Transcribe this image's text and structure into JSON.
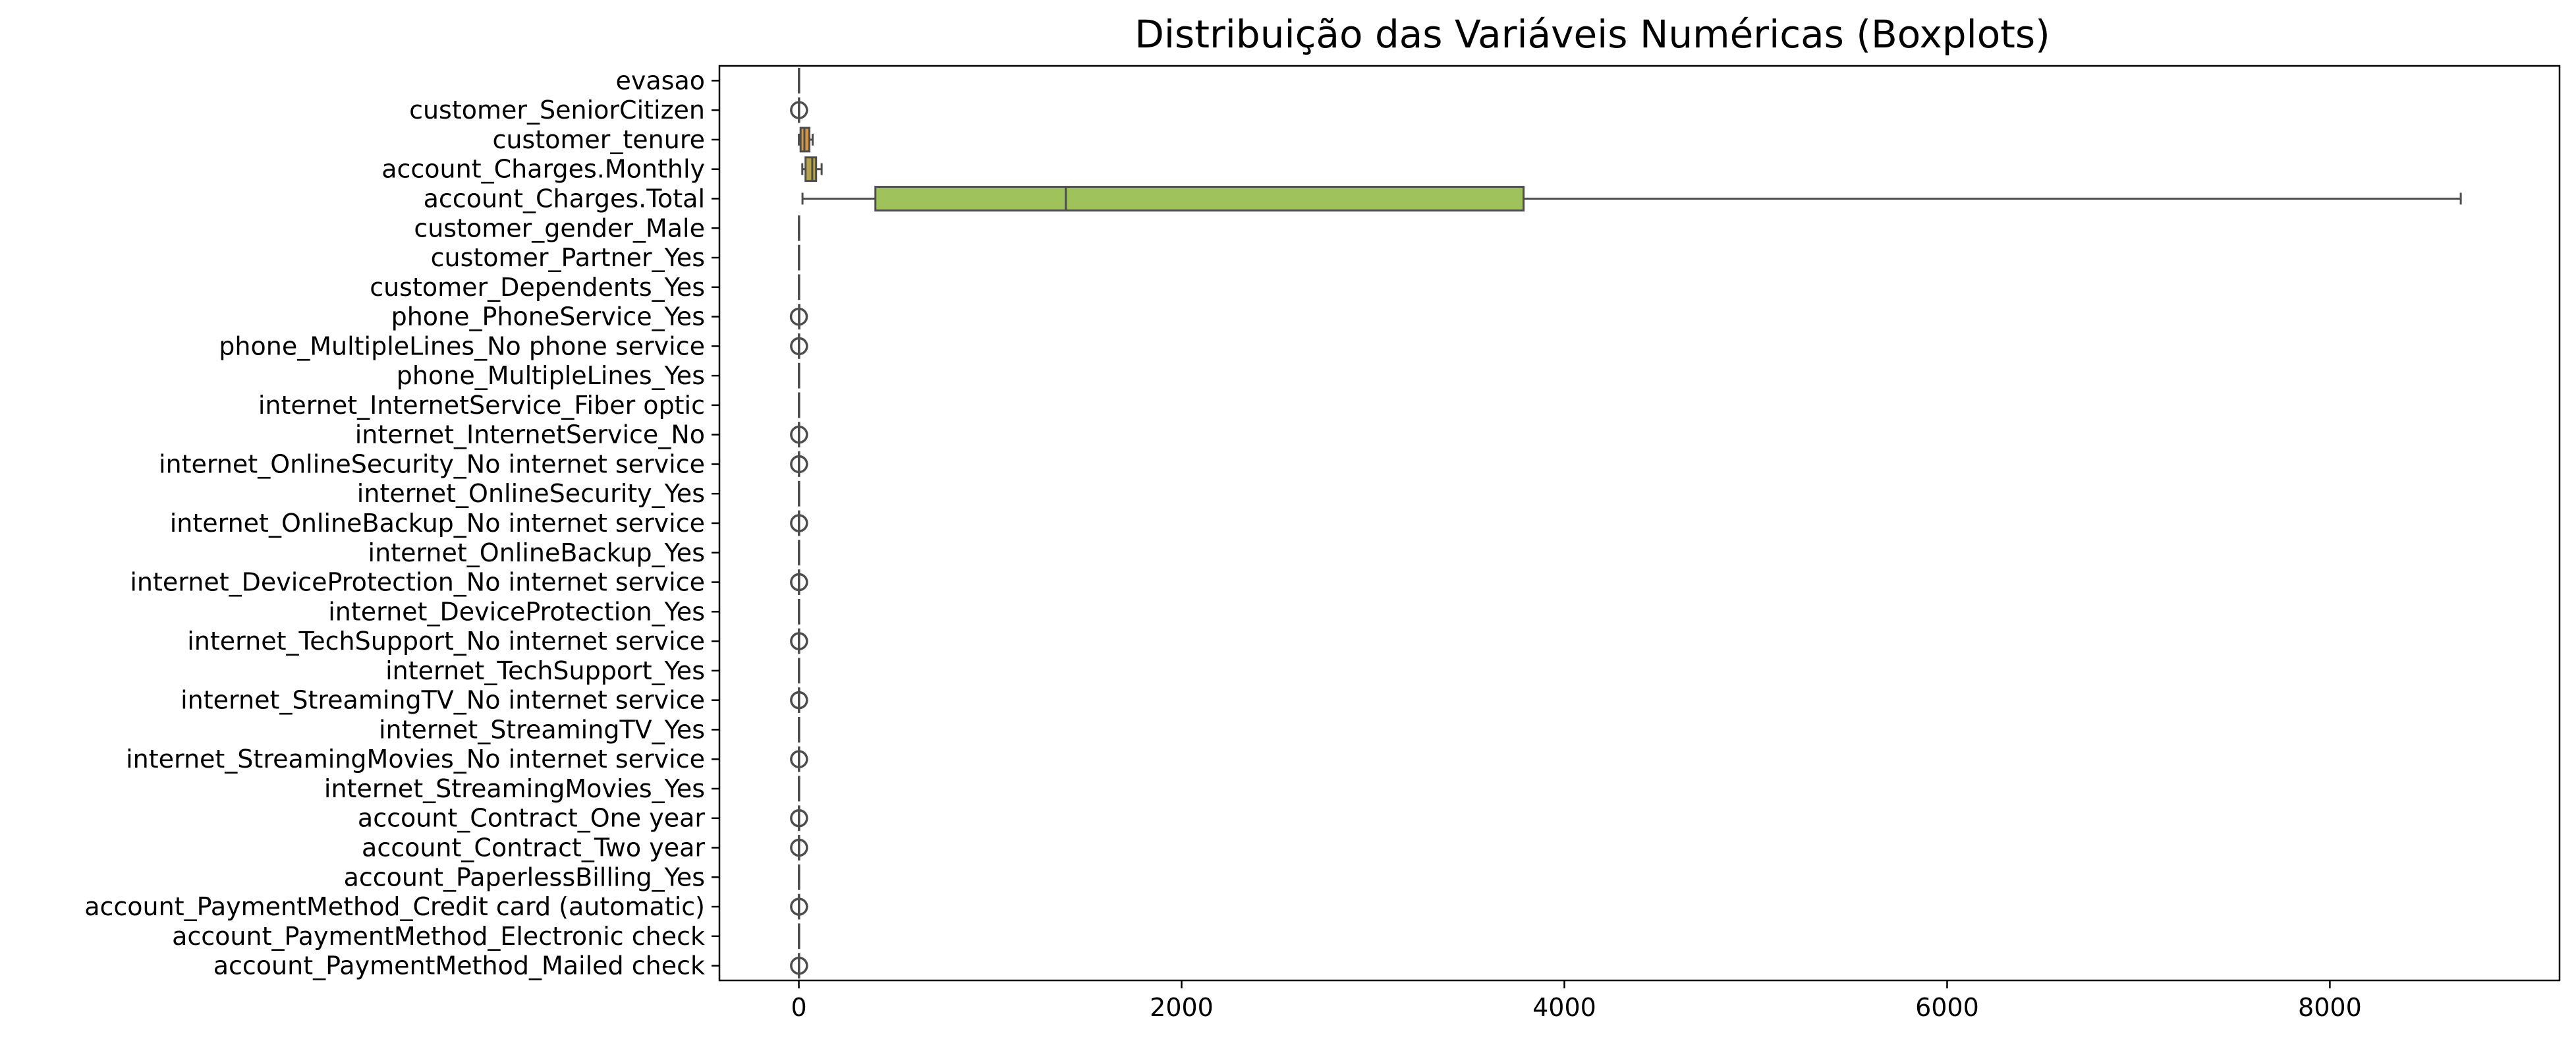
{
  "chart_data": {
    "type": "boxplot",
    "title": "Distribuição das Variáveis Numéricas (Boxplots)",
    "xlabel": "",
    "ylabel": "",
    "xlim": [
      -415,
      9200
    ],
    "xticks": [
      0,
      2000,
      4000,
      6000,
      8000
    ],
    "xtick_labels": [
      "0",
      "2000",
      "4000",
      "6000",
      "8000"
    ],
    "grid": false,
    "legend": "none",
    "categories": [
      "evasao",
      "customer_SeniorCitizen",
      "customer_tenure",
      "account_Charges.Monthly",
      "account_Charges.Total",
      "customer_gender_Male",
      "customer_Partner_Yes",
      "customer_Dependents_Yes",
      "phone_PhoneService_Yes",
      "phone_MultipleLines_No phone service",
      "phone_MultipleLines_Yes",
      "internet_InternetService_Fiber optic",
      "internet_InternetService_No",
      "internet_OnlineSecurity_No internet service",
      "internet_OnlineSecurity_Yes",
      "internet_OnlineBackup_No internet service",
      "internet_OnlineBackup_Yes",
      "internet_DeviceProtection_No internet service",
      "internet_DeviceProtection_Yes",
      "internet_TechSupport_No internet service",
      "internet_TechSupport_Yes",
      "internet_StreamingTV_No internet service",
      "internet_StreamingTV_Yes",
      "internet_StreamingMovies_No internet service",
      "internet_StreamingMovies_Yes",
      "account_Contract_One year",
      "account_Contract_Two year",
      "account_PaperlessBilling_Yes",
      "account_PaymentMethod_Credit card (automatic)",
      "account_PaymentMethod_Electronic check",
      "account_PaymentMethod_Mailed check"
    ],
    "boxes": [
      {
        "min": 0,
        "q1": 0,
        "median": 0,
        "q3": 1,
        "max": 1,
        "outliers": []
      },
      {
        "min": 0,
        "q1": 0,
        "median": 0,
        "q3": 0,
        "max": 0,
        "outliers": [
          1
        ]
      },
      {
        "min": 0,
        "q1": 9,
        "median": 29,
        "q3": 55,
        "max": 72,
        "outliers": []
      },
      {
        "min": 18,
        "q1": 35,
        "median": 70,
        "q3": 90,
        "max": 119,
        "outliers": []
      },
      {
        "min": 19,
        "q1": 400,
        "median": 1395,
        "q3": 3787,
        "max": 8684,
        "outliers": []
      },
      {
        "min": 0,
        "q1": 0,
        "median": 1,
        "q3": 1,
        "max": 1,
        "outliers": []
      },
      {
        "min": 0,
        "q1": 0,
        "median": 0,
        "q3": 1,
        "max": 1,
        "outliers": []
      },
      {
        "min": 0,
        "q1": 0,
        "median": 0,
        "q3": 1,
        "max": 1,
        "outliers": []
      },
      {
        "min": 1,
        "q1": 1,
        "median": 1,
        "q3": 1,
        "max": 1,
        "outliers": [
          0
        ]
      },
      {
        "min": 0,
        "q1": 0,
        "median": 0,
        "q3": 0,
        "max": 0,
        "outliers": [
          1
        ]
      },
      {
        "min": 0,
        "q1": 0,
        "median": 0,
        "q3": 1,
        "max": 1,
        "outliers": []
      },
      {
        "min": 0,
        "q1": 0,
        "median": 0,
        "q3": 1,
        "max": 1,
        "outliers": []
      },
      {
        "min": 0,
        "q1": 0,
        "median": 0,
        "q3": 0,
        "max": 0,
        "outliers": [
          1
        ]
      },
      {
        "min": 0,
        "q1": 0,
        "median": 0,
        "q3": 0,
        "max": 0,
        "outliers": [
          1
        ]
      },
      {
        "min": 0,
        "q1": 0,
        "median": 0,
        "q3": 1,
        "max": 1,
        "outliers": []
      },
      {
        "min": 0,
        "q1": 0,
        "median": 0,
        "q3": 0,
        "max": 0,
        "outliers": [
          1
        ]
      },
      {
        "min": 0,
        "q1": 0,
        "median": 0,
        "q3": 1,
        "max": 1,
        "outliers": []
      },
      {
        "min": 0,
        "q1": 0,
        "median": 0,
        "q3": 0,
        "max": 0,
        "outliers": [
          1
        ]
      },
      {
        "min": 0,
        "q1": 0,
        "median": 0,
        "q3": 1,
        "max": 1,
        "outliers": []
      },
      {
        "min": 0,
        "q1": 0,
        "median": 0,
        "q3": 0,
        "max": 0,
        "outliers": [
          1
        ]
      },
      {
        "min": 0,
        "q1": 0,
        "median": 0,
        "q3": 1,
        "max": 1,
        "outliers": []
      },
      {
        "min": 0,
        "q1": 0,
        "median": 0,
        "q3": 0,
        "max": 0,
        "outliers": [
          1
        ]
      },
      {
        "min": 0,
        "q1": 0,
        "median": 0,
        "q3": 1,
        "max": 1,
        "outliers": []
      },
      {
        "min": 0,
        "q1": 0,
        "median": 0,
        "q3": 0,
        "max": 0,
        "outliers": [
          1
        ]
      },
      {
        "min": 0,
        "q1": 0,
        "median": 0,
        "q3": 1,
        "max": 1,
        "outliers": []
      },
      {
        "min": 0,
        "q1": 0,
        "median": 0,
        "q3": 0,
        "max": 0,
        "outliers": [
          1
        ]
      },
      {
        "min": 0,
        "q1": 0,
        "median": 0,
        "q3": 0,
        "max": 0,
        "outliers": [
          1
        ]
      },
      {
        "min": 0,
        "q1": 0,
        "median": 1,
        "q3": 1,
        "max": 1,
        "outliers": []
      },
      {
        "min": 0,
        "q1": 0,
        "median": 0,
        "q3": 0,
        "max": 0,
        "outliers": [
          1
        ]
      },
      {
        "min": 0,
        "q1": 0,
        "median": 0,
        "q3": 1,
        "max": 1,
        "outliers": []
      },
      {
        "min": 0,
        "q1": 0,
        "median": 0,
        "q3": 0,
        "max": 0,
        "outliers": [
          1
        ]
      }
    ],
    "colors": [
      "#e5899a",
      "#e08c6a",
      "#cf9747",
      "#b5a24a",
      "#9fc35a",
      "#5fab48",
      "#4fae6a",
      "#4aaf8c",
      "#49ae9f",
      "#4badb3",
      "#4eabc3",
      "#52a7d6",
      "#7e9ee6",
      "#a192ea",
      "#b98ae6",
      "#d07fde",
      "#e37ad0",
      "#e77ec0",
      "#e885ac",
      "#e58c8a",
      "#de9465",
      "#cd9c48",
      "#b2a748",
      "#95b548",
      "#6db35a",
      "#52b07a",
      "#4caf93",
      "#4aaea6",
      "#4bacb9",
      "#50a9cb",
      "#6fa0df"
    ]
  }
}
